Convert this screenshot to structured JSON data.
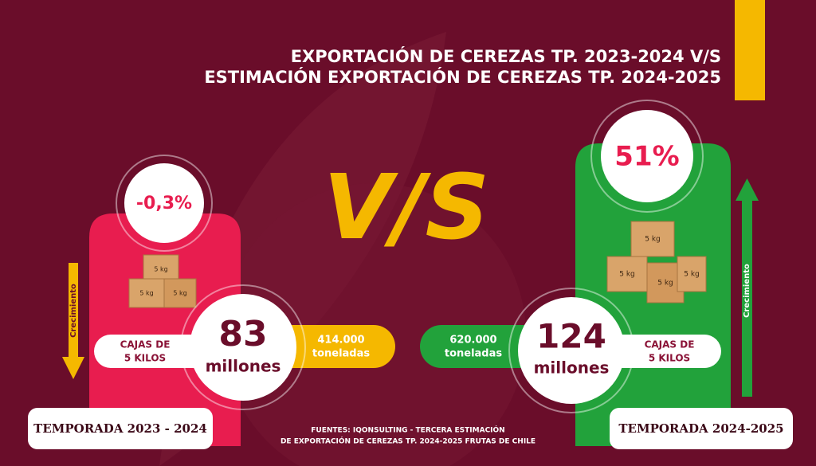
{
  "header": {
    "title_lines": [
      "EXPORTACIÓN DE CEREZAS TP. 2023-2024 V/S",
      "ESTIMACIÓN EXPORTACIÓN DE CEREZAS TP. 2024-2025"
    ]
  },
  "versus": "V/S",
  "box_label": "5 kg",
  "left": {
    "change": "-0,3%",
    "arrow_label": "Crecimiento",
    "unit_lines": [
      "CAJAS DE",
      "5 KILOS"
    ],
    "amount": "83",
    "amount_unit": "millones",
    "tonnage": "414.000",
    "tonnage_unit": "toneladas",
    "season": "TEMPORADA 2023 - 2024"
  },
  "right": {
    "change": "51%",
    "arrow_label": "Crecimiento",
    "unit_lines": [
      "CAJAS DE",
      "5 KILOS"
    ],
    "amount": "124",
    "amount_unit": "millones",
    "tonnage": "620.000",
    "tonnage_unit": "toneladas",
    "season": "TEMPORADA 2024-2025"
  },
  "source_lines": [
    "FUENTES: IQONSULTING - TERCERA ESTIMACIÓN",
    "DE EXPORTACIÓN DE CEREZAS TP. 2024-2025 FRUTAS DE CHILE"
  ]
}
